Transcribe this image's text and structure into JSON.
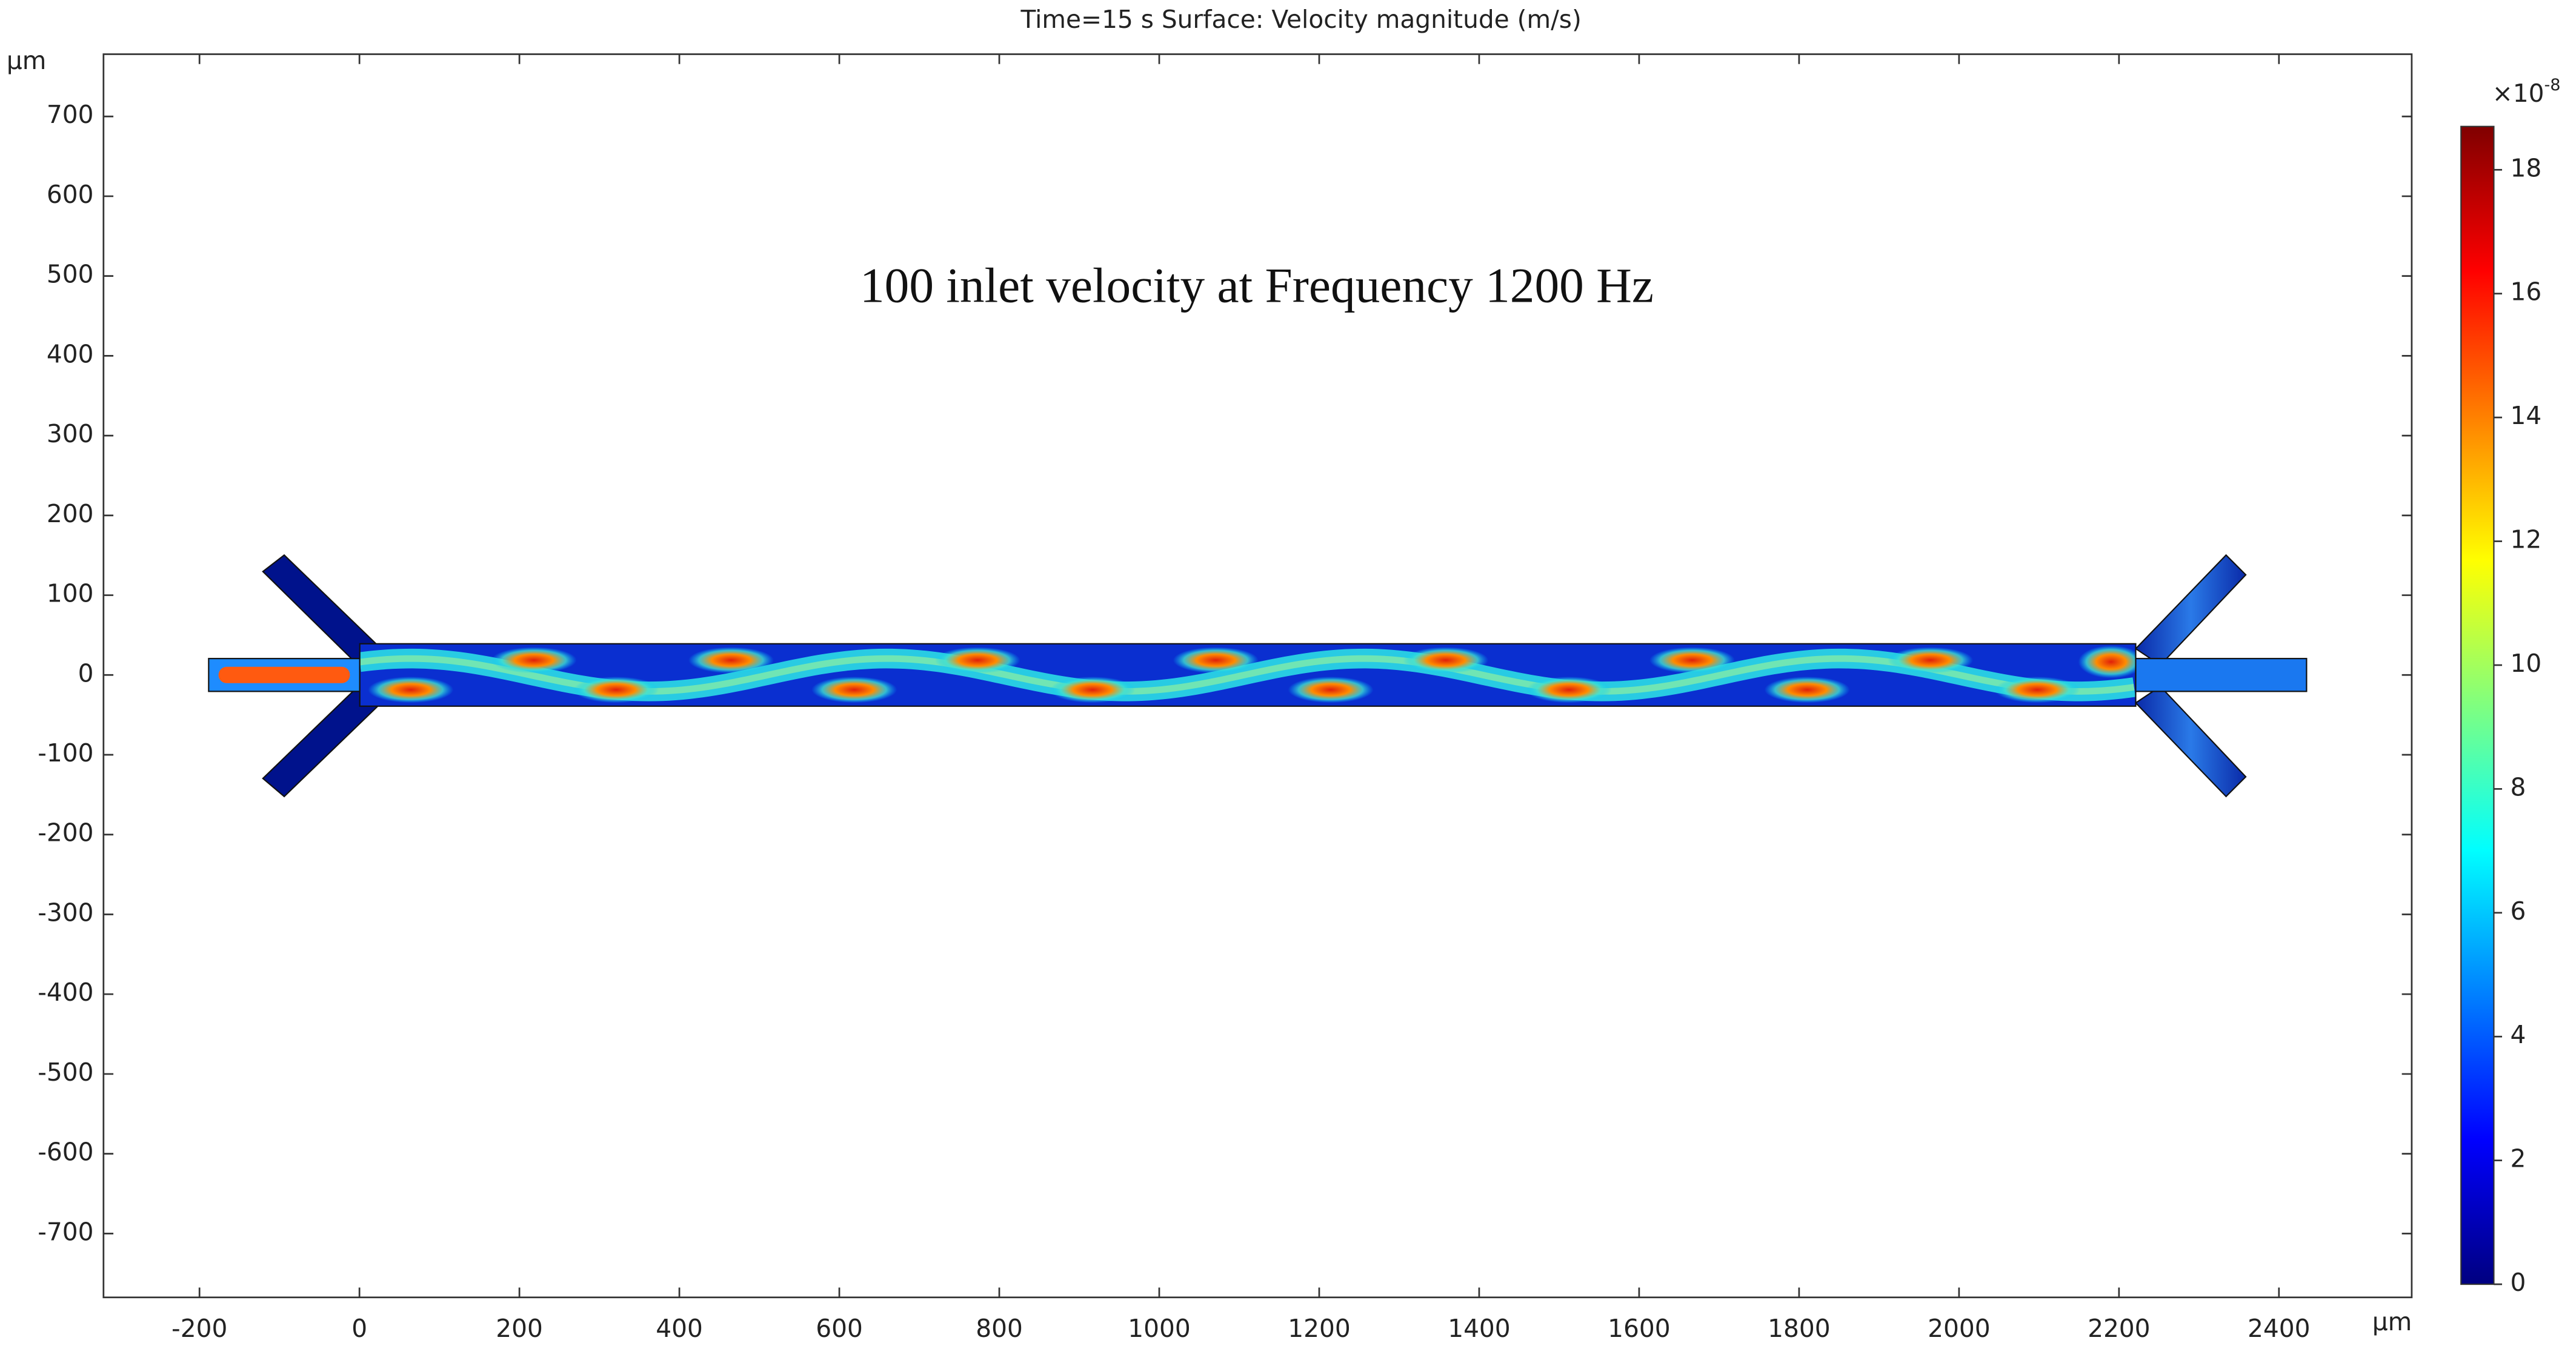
{
  "chart_data": {
    "type": "surface",
    "title": "Time=15 s   Surface: Velocity magnitude (m/s)",
    "annotation": "100 inlet velocity at Frequency 1200 Hz",
    "x_unit": "μm",
    "y_unit": "μm",
    "xlim": [
      -320,
      2566
    ],
    "ylim": [
      -780,
      778
    ],
    "xticks": [
      -200,
      0,
      200,
      400,
      600,
      800,
      1000,
      1200,
      1400,
      1600,
      1800,
      2000,
      2200,
      2400
    ],
    "yticks": [
      -700,
      -600,
      -500,
      -400,
      -300,
      -200,
      -100,
      0,
      100,
      200,
      300,
      400,
      500,
      600,
      700
    ],
    "colorbar": {
      "multiplier": {
        "base": "×10",
        "exponent": "-8"
      },
      "clim": [
        0,
        18.7
      ],
      "ticks": [
        0,
        2,
        4,
        6,
        8,
        10,
        12,
        14,
        16,
        18
      ],
      "colormap": "jet"
    }
  }
}
